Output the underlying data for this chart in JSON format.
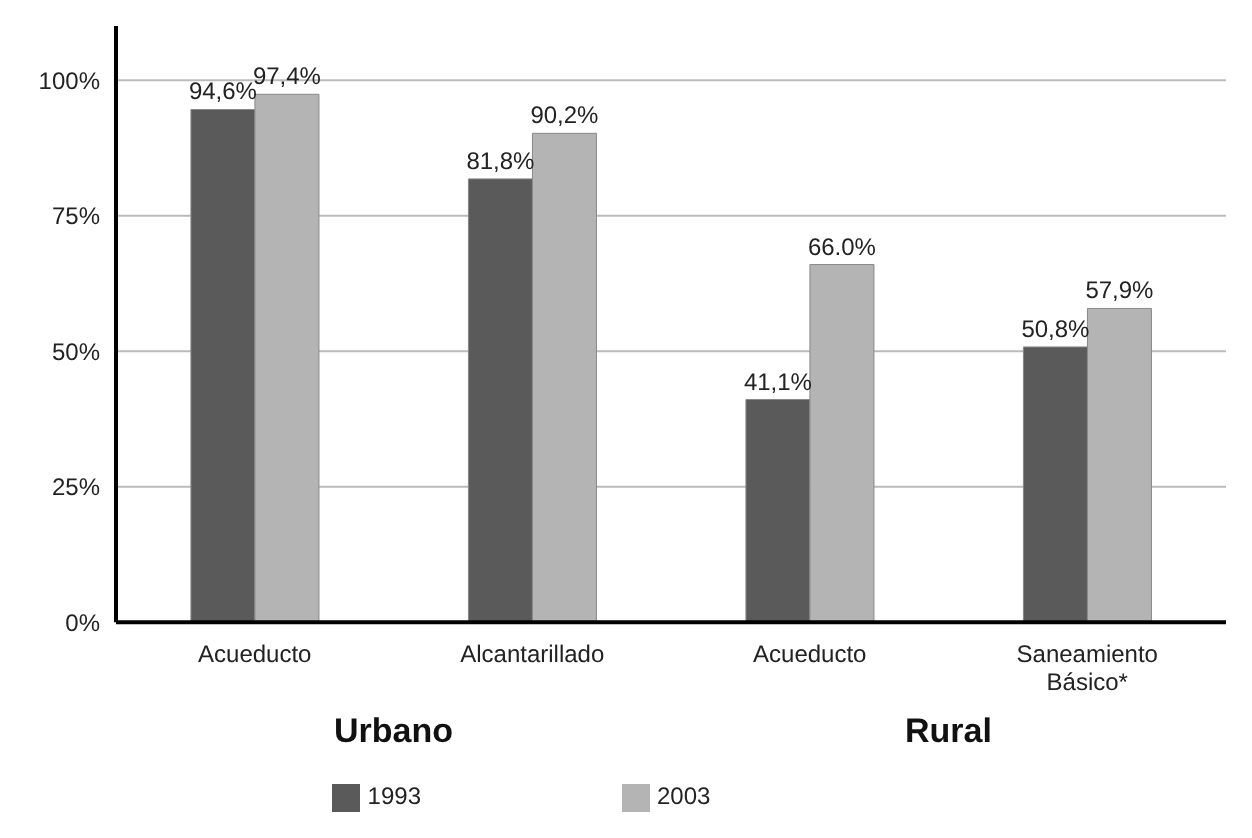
{
  "chart_data": {
    "type": "bar",
    "categories": [
      "Acueducto",
      "Alcantarillado",
      "Acueducto",
      "Saneamiento Básico*"
    ],
    "series": [
      {
        "name": "1993",
        "color": "#5a5a5a",
        "values": [
          94.6,
          81.8,
          41.1,
          50.8
        ],
        "value_labels": [
          "94,6%",
          "81,8%",
          "41,1%",
          "50,8%"
        ]
      },
      {
        "name": "2003",
        "color": "#b4b4b4",
        "values": [
          97.4,
          90.2,
          66.0,
          57.9
        ],
        "value_labels": [
          "97,4%",
          "90,2%",
          "66.0%",
          "57,9%"
        ]
      }
    ],
    "ylim": [
      0,
      110
    ],
    "yticks": [
      {
        "value": 0,
        "label": "0%"
      },
      {
        "value": 25,
        "label": "25%"
      },
      {
        "value": 50,
        "label": "50%"
      },
      {
        "value": 75,
        "label": "75%"
      },
      {
        "value": 100,
        "label": "100%"
      }
    ],
    "grid": "y",
    "legend": "bottom",
    "annotations": [
      "Urbano",
      "Rural"
    ]
  }
}
